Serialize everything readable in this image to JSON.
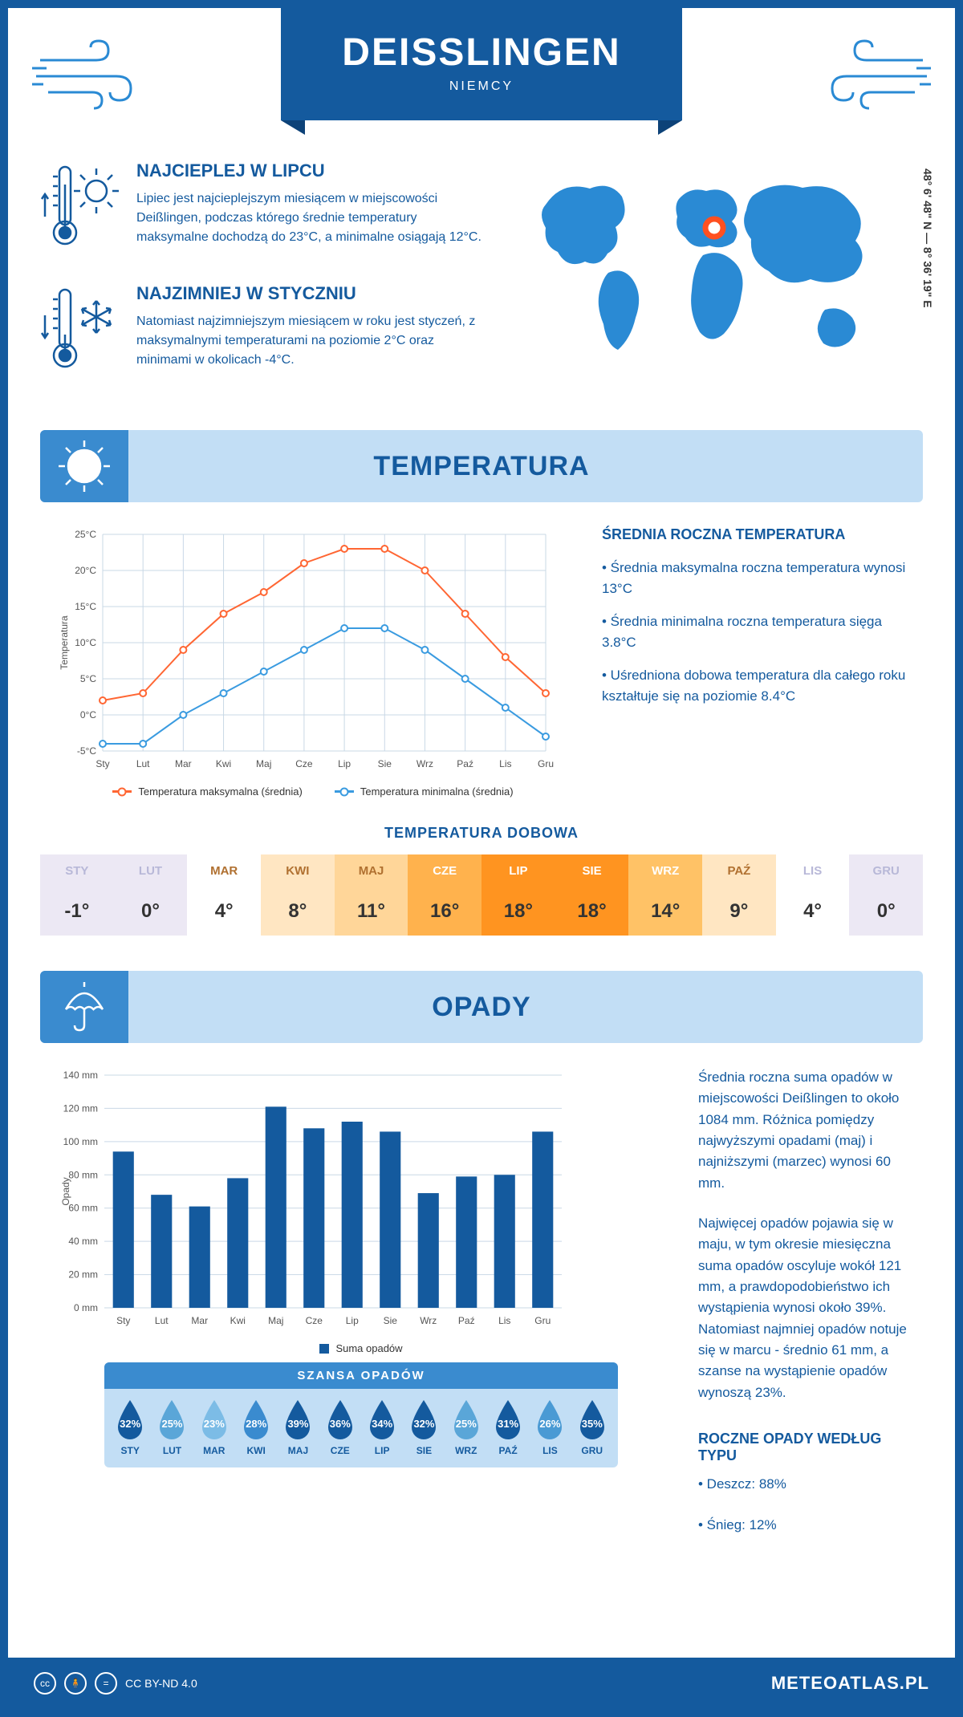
{
  "header": {
    "city": "DEISSLINGEN",
    "country": "NIEMCY"
  },
  "coords": "48° 6' 48\" N — 8° 36' 19\" E",
  "warmest": {
    "title": "NAJCIEPLEJ W LIPCU",
    "text": "Lipiec jest najcieplejszym miesiącem w miejscowości Deißlingen, podczas którego średnie temperatury maksymalne dochodzą do 23°C, a minimalne osiągają 12°C."
  },
  "coldest": {
    "title": "NAJZIMNIEJ W STYCZNIU",
    "text": "Natomiast najzimniejszym miesiącem w roku jest styczeń, z maksymalnymi temperaturami na poziomie 2°C oraz minimami w okolicach -4°C."
  },
  "temp_section": {
    "title": "TEMPERATURA"
  },
  "temp_chart": {
    "type": "line",
    "months": [
      "Sty",
      "Lut",
      "Mar",
      "Kwi",
      "Maj",
      "Cze",
      "Lip",
      "Sie",
      "Wrz",
      "Paź",
      "Lis",
      "Gru"
    ],
    "max_series": [
      2,
      3,
      9,
      14,
      17,
      21,
      23,
      23,
      20,
      14,
      8,
      3
    ],
    "min_series": [
      -4,
      -4,
      0,
      3,
      6,
      9,
      12,
      12,
      9,
      5,
      1,
      -3
    ],
    "ylim": [
      -5,
      25
    ],
    "ytick_step": 5,
    "yunit": "°C",
    "ylabel": "Temperatura",
    "max_color": "#ff6633",
    "min_color": "#3a9be0",
    "grid_color": "#c9d8e6",
    "background_color": "#ffffff",
    "line_width": 2,
    "marker": "circle",
    "legend_max": "Temperatura maksymalna (średnia)",
    "legend_min": "Temperatura minimalna (średnia)"
  },
  "annual_temp": {
    "title": "ŚREDNIA ROCZNA TEMPERATURA",
    "b1": "• Średnia maksymalna roczna temperatura wynosi 13°C",
    "b2": "• Średnia minimalna roczna temperatura sięga 3.8°C",
    "b3": "• Uśredniona dobowa temperatura dla całego roku kształtuje się na poziomie 8.4°C"
  },
  "daily": {
    "title": "TEMPERATURA DOBOWA",
    "months": [
      "STY",
      "LUT",
      "MAR",
      "KWI",
      "MAJ",
      "CZE",
      "LIP",
      "SIE",
      "WRZ",
      "PAŹ",
      "LIS",
      "GRU"
    ],
    "values": [
      "-1°",
      "0°",
      "4°",
      "8°",
      "11°",
      "16°",
      "18°",
      "18°",
      "14°",
      "9°",
      "4°",
      "0°"
    ],
    "label_colors": [
      "#b8b8d8",
      "#b8b8d8",
      "#b07030",
      "#b07030",
      "#b07030",
      "#ffffff",
      "#ffffff",
      "#ffffff",
      "#ffffff",
      "#b07030",
      "#b8b8d8",
      "#b8b8d8"
    ],
    "cell_colors": [
      "#ece8f4",
      "#ece8f4",
      "#ffffff",
      "#ffe6c2",
      "#ffd699",
      "#ffb24d",
      "#ff9420",
      "#ff9420",
      "#ffc266",
      "#ffe6c2",
      "#ffffff",
      "#ece8f4"
    ]
  },
  "precip_section": {
    "title": "OPADY"
  },
  "precip_chart": {
    "type": "bar",
    "months": [
      "Sty",
      "Lut",
      "Mar",
      "Kwi",
      "Maj",
      "Cze",
      "Lip",
      "Sie",
      "Wrz",
      "Paź",
      "Lis",
      "Gru"
    ],
    "values": [
      94,
      68,
      61,
      78,
      121,
      108,
      112,
      106,
      69,
      79,
      80,
      106
    ],
    "ylim": [
      0,
      140
    ],
    "ytick_step": 20,
    "yunit": " mm",
    "ylabel": "Opady",
    "bar_color": "#145a9e",
    "grid_color": "#c9d8e6",
    "bar_width": 0.55,
    "legend": "Suma opadów"
  },
  "precip_text": {
    "p1": "Średnia roczna suma opadów w miejscowości Deißlingen to około 1084 mm. Różnica pomiędzy najwyższymi opadami (maj) i najniższymi (marzec) wynosi 60 mm.",
    "p2": "Najwięcej opadów pojawia się w maju, w tym okresie miesięczna suma opadów oscyluje wokół 121 mm, a prawdopodobieństwo ich wystąpienia wynosi około 39%. Natomiast najmniej opadów notuje się w marcu - średnio 61 mm, a szanse na wystąpienie opadów wynoszą 23%.",
    "type_title": "ROCZNE OPADY WEDŁUG TYPU",
    "rain": "• Deszcz: 88%",
    "snow": "• Śnieg: 12%"
  },
  "chance": {
    "title": "SZANSA OPADÓW",
    "months": [
      "STY",
      "LUT",
      "MAR",
      "KWI",
      "MAJ",
      "CZE",
      "LIP",
      "SIE",
      "WRZ",
      "PAŹ",
      "LIS",
      "GRU"
    ],
    "values": [
      "32%",
      "25%",
      "23%",
      "28%",
      "39%",
      "36%",
      "34%",
      "32%",
      "25%",
      "31%",
      "26%",
      "35%"
    ],
    "colors": [
      "#145a9e",
      "#5aa6d8",
      "#7cbce6",
      "#3a8bcf",
      "#145a9e",
      "#145a9e",
      "#145a9e",
      "#145a9e",
      "#5aa6d8",
      "#145a9e",
      "#4a9ad4",
      "#145a9e"
    ]
  },
  "footer": {
    "license": "CC BY-ND 4.0",
    "site": "METEOATLAS.PL"
  },
  "colors": {
    "primary": "#145a9e",
    "light": "#c2def5",
    "mid": "#3a8bcf",
    "map": "#2a8ad4"
  }
}
